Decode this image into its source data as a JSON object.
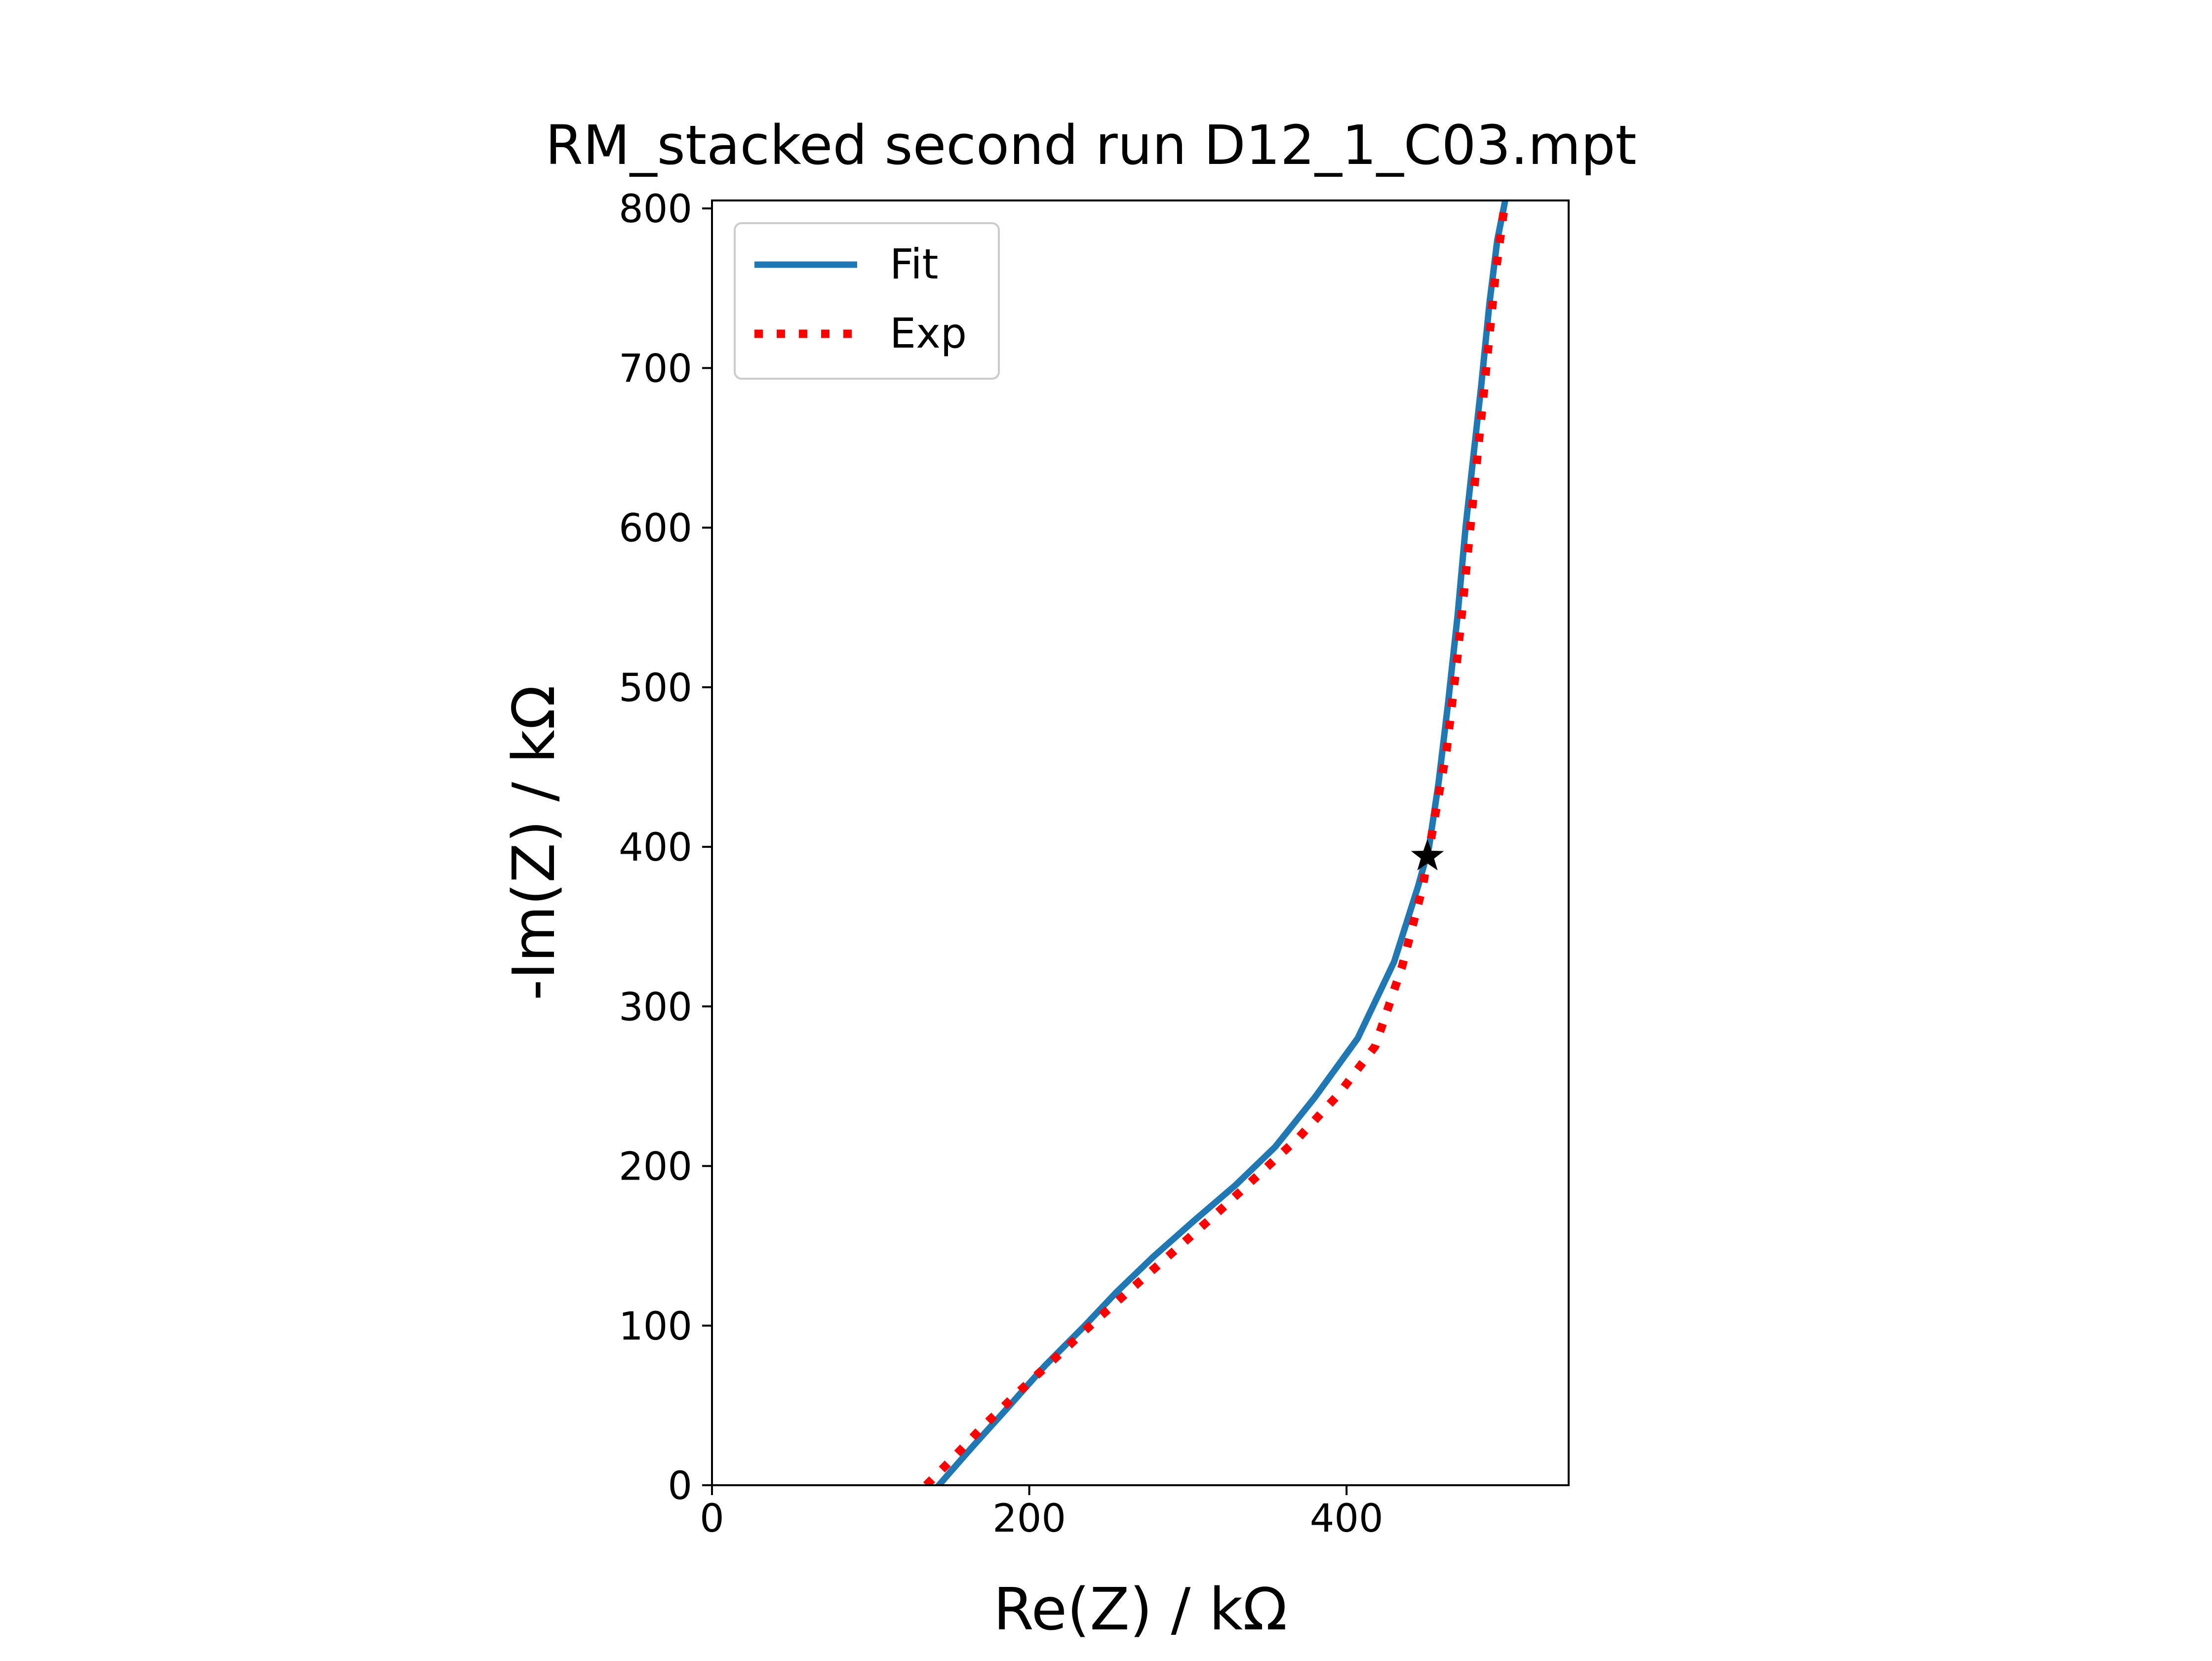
{
  "chart_data": {
    "type": "line",
    "title": "RM_stacked second run D12_1_C03.mpt",
    "xlabel": "Re(Z) / kΩ",
    "ylabel": "-Im(Z) / kΩ",
    "xlim": [
      0,
      540
    ],
    "ylim": [
      0,
      805
    ],
    "xticks": [
      0,
      200,
      400
    ],
    "yticks": [
      0,
      100,
      200,
      300,
      400,
      500,
      600,
      700,
      800
    ],
    "xtick_labels": [
      "0",
      "200",
      "400"
    ],
    "ytick_labels": [
      "0",
      "100",
      "200",
      "300",
      "400",
      "500",
      "600",
      "700",
      "800"
    ],
    "grid": false,
    "legend": {
      "position": "top-left"
    },
    "series": [
      {
        "name": "Fit",
        "color": "#1f77b4",
        "style": "solid",
        "x": [
          143,
          150,
          165,
          185,
          210,
          235,
          255,
          278,
          303,
          330,
          355,
          380,
          407,
          430,
          445,
          452,
          458,
          464,
          470,
          475,
          480,
          485,
          490,
          495,
          500
        ],
        "y": [
          0,
          8,
          25,
          47,
          75,
          100,
          121,
          143,
          165,
          188,
          212,
          243,
          280,
          328,
          375,
          400,
          440,
          490,
          545,
          600,
          645,
          690,
          740,
          780,
          805
        ]
      },
      {
        "name": "Exp",
        "color": "#ff0000",
        "style": "dotted",
        "x": [
          135,
          150,
          170,
          195,
          220,
          245,
          270,
          295,
          320,
          345,
          370,
          395,
          418,
          435,
          448,
          455,
          463,
          470,
          476,
          482,
          488,
          494,
          500
        ],
        "y": [
          0,
          15,
          36,
          60,
          83,
          106,
          128,
          150,
          172,
          195,
          218,
          245,
          275,
          325,
          375,
          415,
          460,
          520,
          580,
          640,
          700,
          760,
          805
        ]
      }
    ],
    "markers": [
      {
        "x": 451,
        "y": 394,
        "symbol": "star",
        "color": "#000000"
      }
    ]
  }
}
